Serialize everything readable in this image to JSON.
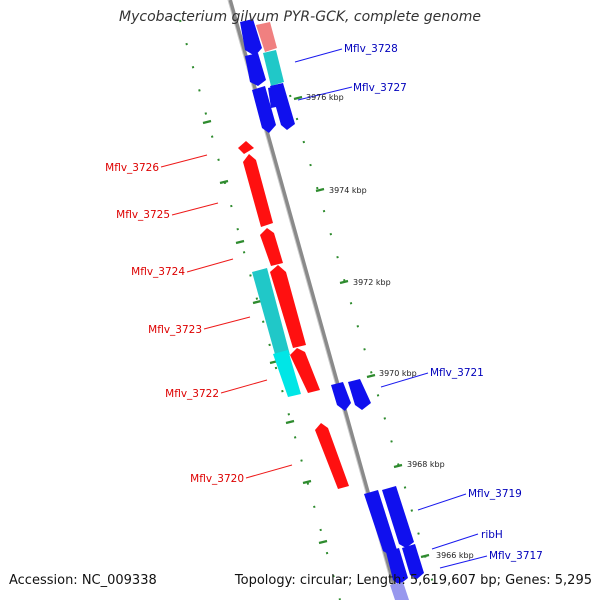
{
  "title": "Mycobacterium gilvum PYR-GCK, complete genome",
  "accession_text": "Accession: NC_009338",
  "summary_text": "Topology: circular; Length: 5,619,607 bp; Genes: 5,295",
  "colors": {
    "backbone": "#8a8a8a",
    "forward_gene": "#0000ee",
    "reverse_gene": "#ff0000",
    "rna_forward": "#00cccc",
    "rna_reverse": "#00dddd",
    "tick": "#2e8b2e",
    "forward_label": "#0000bb",
    "reverse_label": "#dd0000"
  },
  "ruler_ticks": [
    "3976 kbp",
    "3974 kbp",
    "3972 kbp",
    "3970 kbp",
    "3968 kbp",
    "3966 kbp"
  ],
  "forward_gene_labels": [
    "Mflv_3728",
    "Mflv_3727",
    "Mflv_3721",
    "Mflv_3719",
    "ribH",
    "Mflv_3717"
  ],
  "reverse_gene_labels": [
    "Mflv_3726",
    "Mflv_3725",
    "Mflv_3724",
    "Mflv_3723",
    "Mflv_3722",
    "Mflv_3720"
  ]
}
